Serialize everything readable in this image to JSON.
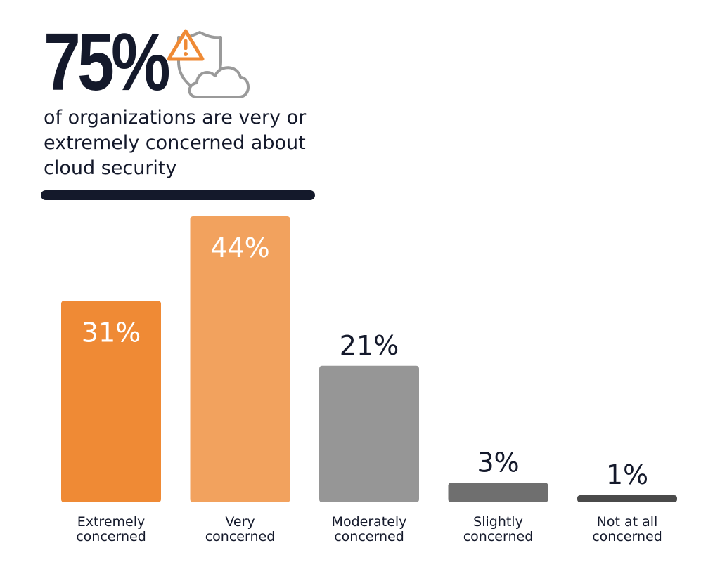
{
  "headline": {
    "stat": "75%",
    "subtitle": "of organizations are very or extremely concerned about cloud security"
  },
  "icons": {
    "warning": "warning-icon",
    "shield": "shield-icon",
    "cloud": "cloud-icon"
  },
  "colors": {
    "navy": "#14192b",
    "extremely": "#ef8a35",
    "very": "#f2a25e",
    "moderately": "#969696",
    "slightly": "#6f6f6f",
    "not_at_all": "#4a4a4a"
  },
  "chart_data": {
    "type": "bar",
    "title": "",
    "xlabel": "",
    "ylabel": "",
    "ylim": [
      0,
      44
    ],
    "categories": [
      [
        "Extremely",
        "concerned"
      ],
      [
        "Very",
        "concerned"
      ],
      [
        "Moderately",
        "concerned"
      ],
      [
        "Slightly",
        "concerned"
      ],
      [
        "Not at all",
        "concerned"
      ]
    ],
    "values": [
      31,
      44,
      21,
      3,
      1
    ],
    "value_labels": [
      "31%",
      "44%",
      "21%",
      "3%",
      "1%"
    ],
    "label_inside": [
      true,
      true,
      false,
      false,
      false
    ],
    "bar_colors": [
      "#ef8a35",
      "#f2a25e",
      "#969696",
      "#6f6f6f",
      "#4a4a4a"
    ]
  }
}
